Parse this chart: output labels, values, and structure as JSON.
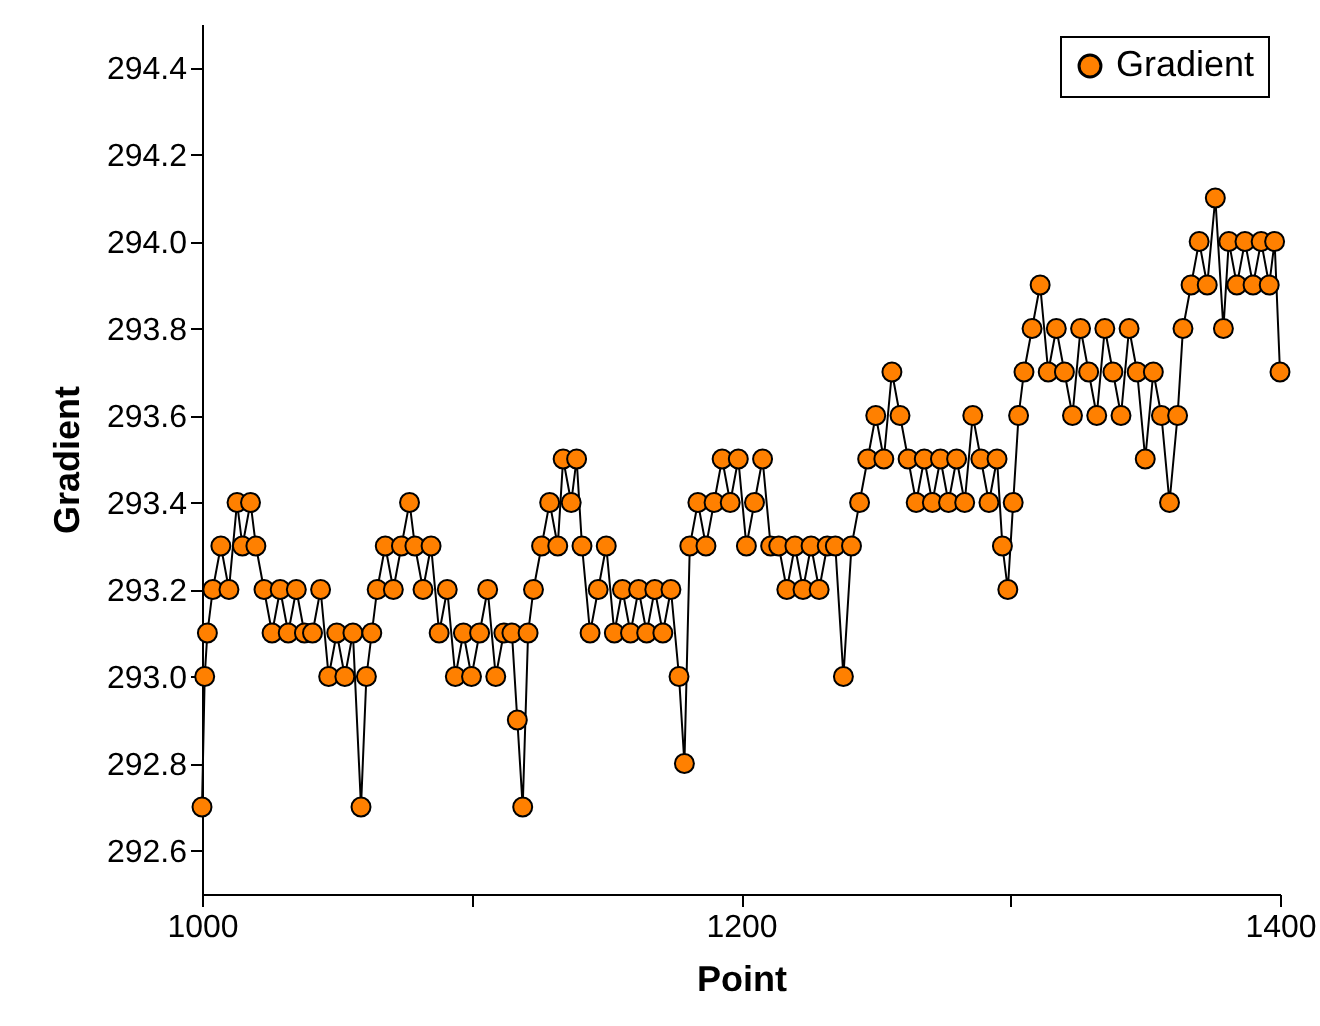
{
  "chart_data": {
    "type": "line",
    "xlabel": "Point",
    "ylabel": "Gradient",
    "x": [
      1000,
      1001,
      1002,
      1004,
      1007,
      1010,
      1013,
      1015,
      1018,
      1020,
      1023,
      1026,
      1029,
      1032,
      1035,
      1038,
      1041,
      1044,
      1047,
      1050,
      1053,
      1056,
      1059,
      1061,
      1063,
      1065,
      1068,
      1071,
      1074,
      1077,
      1079,
      1082,
      1085,
      1088,
      1091,
      1094,
      1097,
      1100,
      1103,
      1106,
      1109,
      1112,
      1115,
      1117,
      1119,
      1121,
      1123,
      1126,
      1129,
      1132,
      1134,
      1137,
      1139,
      1141,
      1144,
      1147,
      1150,
      1153,
      1156,
      1159,
      1162,
      1165,
      1168,
      1171,
      1174,
      1177,
      1179,
      1181,
      1184,
      1187,
      1190,
      1193,
      1196,
      1199,
      1202,
      1205,
      1208,
      1211,
      1214,
      1217,
      1220,
      1223,
      1226,
      1229,
      1232,
      1235,
      1238,
      1241,
      1244,
      1247,
      1250,
      1253,
      1256,
      1259,
      1262,
      1265,
      1268,
      1271,
      1274,
      1277,
      1280,
      1283,
      1286,
      1289,
      1292,
      1295,
      1297,
      1299,
      1301,
      1303,
      1305,
      1308,
      1311,
      1314,
      1317,
      1320,
      1323,
      1326,
      1329,
      1332,
      1335,
      1338,
      1341,
      1344,
      1347,
      1350,
      1353,
      1356,
      1359,
      1362,
      1364,
      1367,
      1370,
      1373,
      1376,
      1379,
      1381,
      1384,
      1387,
      1390,
      1393,
      1396,
      1398,
      1400
    ],
    "series": [
      {
        "name": "Gradient",
        "color": "#ff8000",
        "values": [
          292.7,
          293.0,
          293.1,
          293.2,
          293.3,
          293.2,
          293.4,
          293.3,
          293.4,
          293.3,
          293.2,
          293.1,
          293.2,
          293.1,
          293.2,
          293.1,
          293.1,
          293.2,
          293.0,
          293.1,
          293.0,
          293.1,
          292.7,
          293.0,
          293.1,
          293.2,
          293.3,
          293.2,
          293.3,
          293.4,
          293.3,
          293.2,
          293.3,
          293.1,
          293.2,
          293.0,
          293.1,
          293.0,
          293.1,
          293.2,
          293.0,
          293.1,
          293.1,
          292.9,
          292.7,
          293.1,
          293.2,
          293.3,
          293.4,
          293.3,
          293.5,
          293.4,
          293.5,
          293.3,
          293.1,
          293.2,
          293.3,
          293.1,
          293.2,
          293.1,
          293.2,
          293.1,
          293.2,
          293.1,
          293.2,
          293.0,
          292.8,
          293.3,
          293.4,
          293.3,
          293.4,
          293.5,
          293.4,
          293.5,
          293.3,
          293.4,
          293.5,
          293.3,
          293.3,
          293.2,
          293.3,
          293.2,
          293.3,
          293.2,
          293.3,
          293.3,
          293.0,
          293.3,
          293.4,
          293.5,
          293.6,
          293.5,
          293.7,
          293.6,
          293.5,
          293.4,
          293.5,
          293.4,
          293.5,
          293.4,
          293.5,
          293.4,
          293.6,
          293.5,
          293.4,
          293.5,
          293.3,
          293.2,
          293.4,
          293.6,
          293.7,
          293.8,
          293.9,
          293.7,
          293.8,
          293.7,
          293.6,
          293.8,
          293.7,
          293.6,
          293.8,
          293.7,
          293.6,
          293.8,
          293.7,
          293.5,
          293.7,
          293.6,
          293.4,
          293.6,
          293.8,
          293.9,
          294.0,
          293.9,
          294.1,
          293.8,
          294.0,
          293.9,
          294.0,
          293.9,
          294.0,
          293.9,
          294.0,
          293.7
        ]
      }
    ],
    "xlim": [
      1000,
      1400
    ],
    "xticks": [
      1000,
      {
        "value": 1100,
        "label": null
      },
      1200,
      {
        "value": 1300,
        "label": null
      },
      1400
    ],
    "ylim": [
      292.5,
      294.5
    ],
    "yticks": [
      292.6,
      292.8,
      {
        "value": 293.0,
        "label": "293.0"
      },
      293.2,
      293.4,
      293.6,
      293.8,
      {
        "value": 294.0,
        "label": "294.0"
      },
      294.2,
      294.4
    ],
    "grid": false,
    "legend": "top right",
    "marker": "circle",
    "line_style": "solid"
  }
}
